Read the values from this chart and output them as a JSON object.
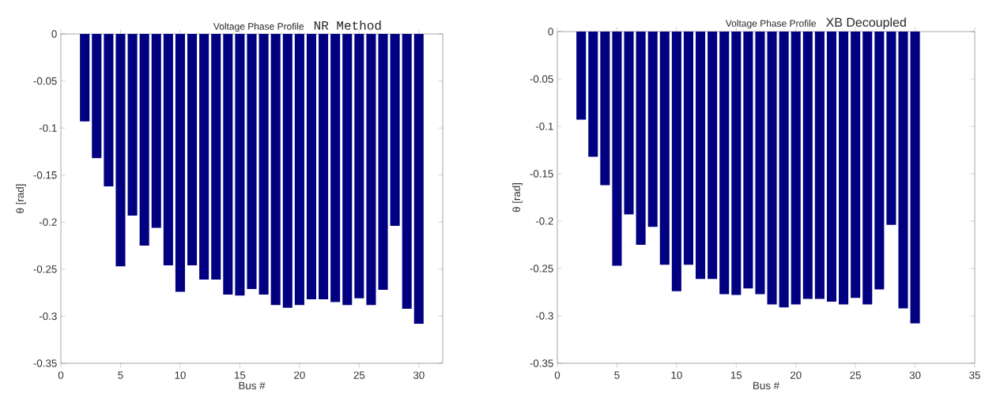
{
  "chart_data": [
    {
      "type": "bar",
      "title": "Voltage Phase Profile",
      "subtitle": "NR Method",
      "xlabel": "Bus #",
      "ylabel": "θ [rad]",
      "x": [
        2,
        3,
        4,
        5,
        6,
        7,
        8,
        9,
        10,
        11,
        12,
        13,
        14,
        15,
        16,
        17,
        18,
        19,
        20,
        21,
        22,
        23,
        24,
        25,
        26,
        27,
        28,
        29,
        30
      ],
      "values": [
        -0.093,
        -0.132,
        -0.162,
        -0.247,
        -0.193,
        -0.225,
        -0.206,
        -0.246,
        -0.274,
        -0.246,
        -0.261,
        -0.261,
        -0.277,
        -0.278,
        -0.271,
        -0.277,
        -0.288,
        -0.291,
        -0.288,
        -0.282,
        -0.282,
        -0.285,
        -0.288,
        -0.281,
        -0.288,
        -0.272,
        -0.204,
        -0.292,
        -0.308
      ],
      "color": "#000080",
      "xlim": [
        0,
        32
      ],
      "xticks": [
        0,
        5,
        10,
        15,
        20,
        25,
        30
      ],
      "ylim": [
        -0.35,
        0
      ],
      "yticks": [
        -0.35,
        -0.3,
        -0.25,
        -0.2,
        -0.15,
        -0.1,
        -0.05,
        0
      ]
    },
    {
      "type": "bar",
      "title": "Voltage Phase Profile",
      "subtitle": "XB Decoupled",
      "xlabel": "Bus #",
      "ylabel": "θ [rad]",
      "x": [
        2,
        3,
        4,
        5,
        6,
        7,
        8,
        9,
        10,
        11,
        12,
        13,
        14,
        15,
        16,
        17,
        18,
        19,
        20,
        21,
        22,
        23,
        24,
        25,
        26,
        27,
        28,
        29,
        30
      ],
      "values": [
        -0.093,
        -0.132,
        -0.162,
        -0.247,
        -0.193,
        -0.225,
        -0.206,
        -0.246,
        -0.274,
        -0.246,
        -0.261,
        -0.261,
        -0.277,
        -0.278,
        -0.271,
        -0.277,
        -0.288,
        -0.291,
        -0.288,
        -0.282,
        -0.282,
        -0.285,
        -0.288,
        -0.281,
        -0.288,
        -0.272,
        -0.204,
        -0.292,
        -0.308
      ],
      "color": "#000080",
      "xlim": [
        0,
        35
      ],
      "xticks": [
        0,
        5,
        10,
        15,
        20,
        25,
        30,
        35
      ],
      "ylim": [
        -0.35,
        0
      ],
      "yticks": [
        -0.35,
        -0.3,
        -0.25,
        -0.2,
        -0.15,
        -0.1,
        -0.05,
        0
      ]
    }
  ]
}
